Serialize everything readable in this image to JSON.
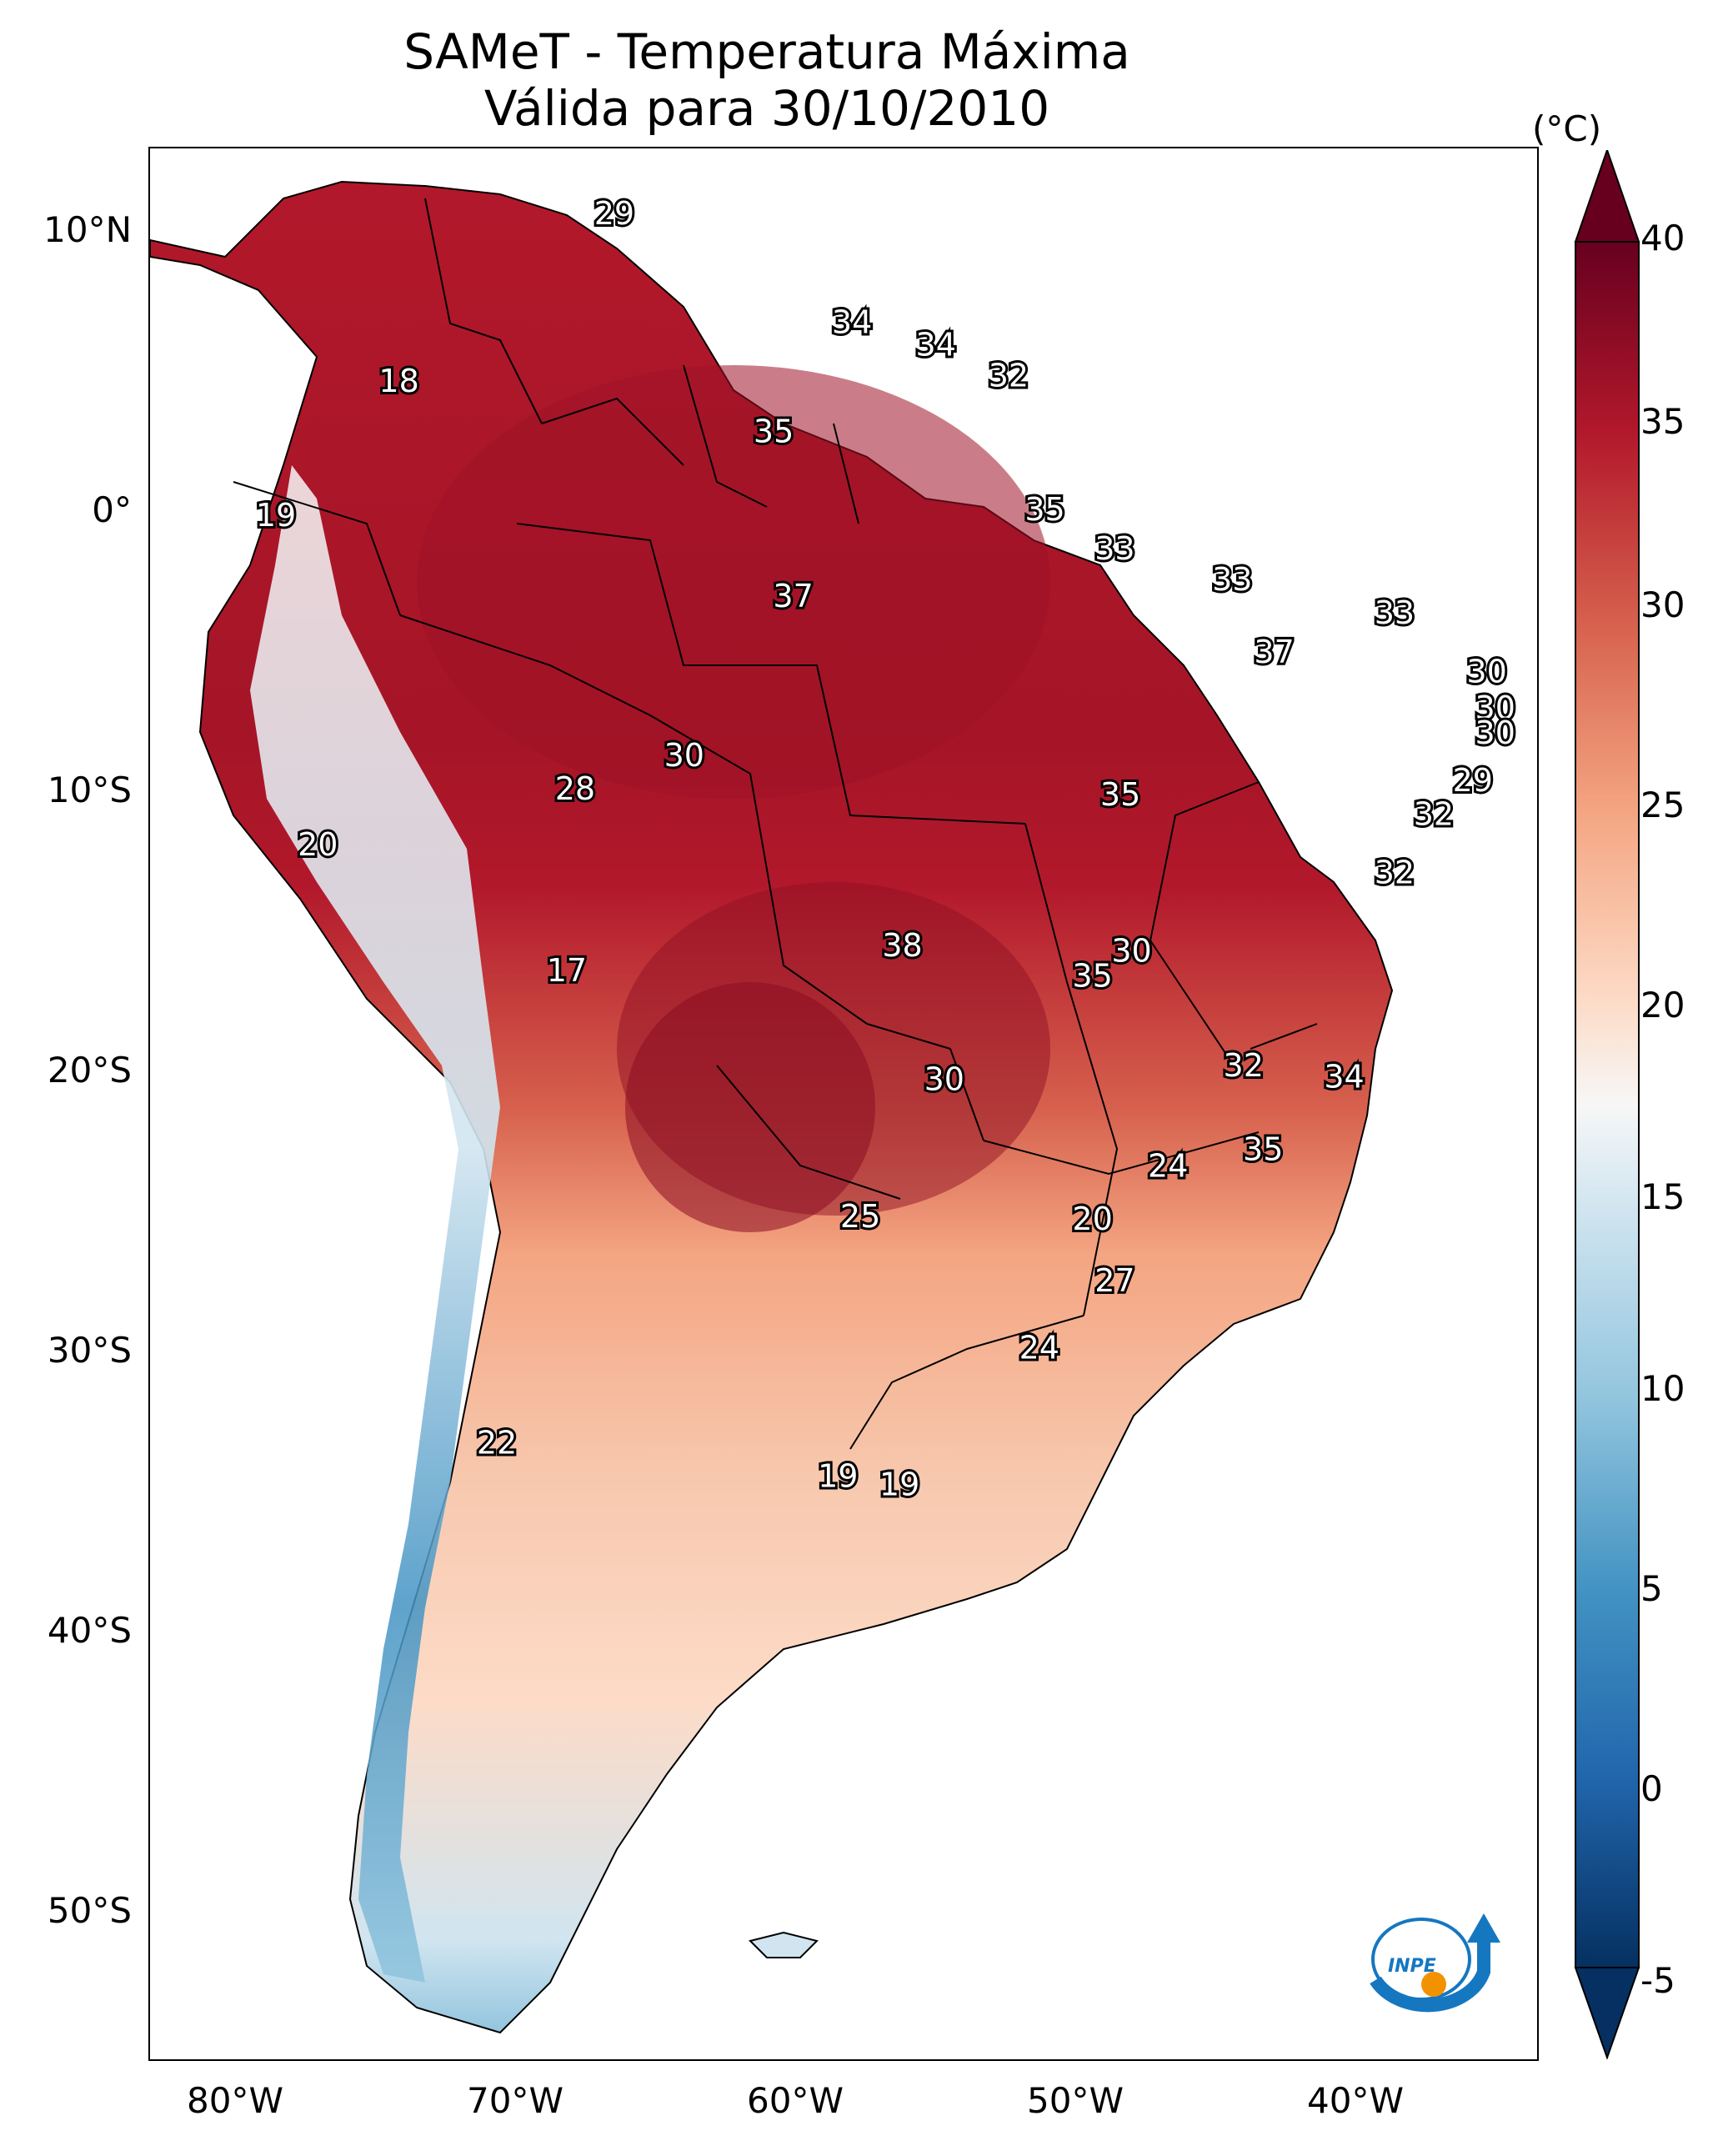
{
  "title": {
    "line1": "SAMeT - Temperatura Máxima",
    "line2": "Válida para 30/10/2010"
  },
  "axes": {
    "lat_labels": [
      "10°N",
      "0°",
      "10°S",
      "20°S",
      "30°S",
      "40°S",
      "50°S"
    ],
    "lon_labels": [
      "80°W",
      "70°W",
      "60°W",
      "50°W",
      "40°W"
    ]
  },
  "colorbar": {
    "unit": "(°C)",
    "tick_labels": [
      "40",
      "35",
      "30",
      "25",
      "20",
      "15",
      "10",
      "5",
      "0",
      "-5"
    ],
    "range": [
      -5,
      40
    ],
    "colors": [
      "#053061",
      "#2166ac",
      "#4393c3",
      "#92c5de",
      "#d1e5f0",
      "#f7f7f7",
      "#fddbc7",
      "#f4a582",
      "#d6604d",
      "#b2182b",
      "#67001f"
    ]
  },
  "city_values": [
    {
      "value": "29",
      "lon": -66.4,
      "lat": 10.6
    },
    {
      "value": "34",
      "lon": -57.9,
      "lat": 6.7
    },
    {
      "value": "34",
      "lon": -54.9,
      "lat": 5.9
    },
    {
      "value": "32",
      "lon": -52.3,
      "lat": 4.8
    },
    {
      "value": "18",
      "lon": -74.1,
      "lat": 4.6
    },
    {
      "value": "35",
      "lon": -60.7,
      "lat": 2.8
    },
    {
      "value": "19",
      "lon": -78.5,
      "lat": -0.2
    },
    {
      "value": "35",
      "lon": -51.0,
      "lat": 0.0
    },
    {
      "value": "33",
      "lon": -48.5,
      "lat": -1.4
    },
    {
      "value": "37",
      "lon": -60.0,
      "lat": -3.1
    },
    {
      "value": "33",
      "lon": -44.3,
      "lat": -2.5
    },
    {
      "value": "33",
      "lon": -38.5,
      "lat": -3.7
    },
    {
      "value": "37",
      "lon": -42.8,
      "lat": -5.1
    },
    {
      "value": "30",
      "lon": -35.2,
      "lat": -5.8
    },
    {
      "value": "30",
      "lon": -34.9,
      "lat": -7.1
    },
    {
      "value": "30",
      "lon": -34.9,
      "lat": -8.0
    },
    {
      "value": "30",
      "lon": -63.9,
      "lat": -8.8
    },
    {
      "value": "29",
      "lon": -35.7,
      "lat": -9.7
    },
    {
      "value": "28",
      "lon": -67.8,
      "lat": -10.0
    },
    {
      "value": "35",
      "lon": -48.3,
      "lat": -10.2
    },
    {
      "value": "32",
      "lon": -37.1,
      "lat": -10.9
    },
    {
      "value": "20",
      "lon": -77.0,
      "lat": -12.0
    },
    {
      "value": "32",
      "lon": -38.5,
      "lat": -13.0
    },
    {
      "value": "38",
      "lon": -56.1,
      "lat": -15.6
    },
    {
      "value": "30",
      "lon": -47.9,
      "lat": -15.8
    },
    {
      "value": "17",
      "lon": -68.1,
      "lat": -16.5
    },
    {
      "value": "35",
      "lon": -49.3,
      "lat": -16.7
    },
    {
      "value": "32",
      "lon": -43.9,
      "lat": -19.9
    },
    {
      "value": "34",
      "lon": -40.3,
      "lat": -20.3
    },
    {
      "value": "30",
      "lon": -54.6,
      "lat": -20.4
    },
    {
      "value": "35",
      "lon": -43.2,
      "lat": -22.9
    },
    {
      "value": "24",
      "lon": -46.6,
      "lat": -23.5
    },
    {
      "value": "25",
      "lon": -57.6,
      "lat": -25.3
    },
    {
      "value": "20",
      "lon": -49.3,
      "lat": -25.4
    },
    {
      "value": "27",
      "lon": -48.5,
      "lat": -27.6
    },
    {
      "value": "24",
      "lon": -51.2,
      "lat": -30.0
    },
    {
      "value": "22",
      "lon": -70.6,
      "lat": -33.4
    },
    {
      "value": "19",
      "lon": -58.4,
      "lat": -34.6
    },
    {
      "value": "19",
      "lon": -56.2,
      "lat": -34.9
    }
  ]
}
